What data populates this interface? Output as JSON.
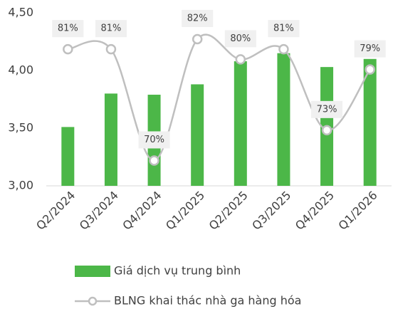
{
  "chart_data": {
    "type": "bar-line",
    "categories": [
      "Q2/2024",
      "Q3/2024",
      "Q4/2024",
      "Q1/2025",
      "Q2/2025",
      "Q3/2025",
      "Q4/2025",
      "Q1/2026"
    ],
    "series": [
      {
        "name": "Giá dịch vụ trung bình",
        "type": "bar",
        "color": "#4cb748",
        "values": [
          3.51,
          3.8,
          3.79,
          3.88,
          4.08,
          4.15,
          4.03,
          4.1
        ]
      },
      {
        "name": "BLNG khai thác nhà ga hàng hóa",
        "type": "line",
        "axis": "y2",
        "color": "#bfbfbf",
        "values": [
          81,
          81,
          70,
          82,
          80,
          81,
          73,
          79
        ],
        "value_labels": [
          "81%",
          "81%",
          "70%",
          "82%",
          "80%",
          "81%",
          "73%",
          "79%"
        ]
      }
    ],
    "ylim": [
      3,
      4.5
    ],
    "yticks": [
      {
        "value": 3,
        "label": "3,00"
      },
      {
        "value": 3.5,
        "label": "3,50"
      },
      {
        "value": 4,
        "label": "4,00"
      },
      {
        "value": 4.5,
        "label": "4,50"
      }
    ],
    "y2lim": [
      67.5,
      84.6
    ],
    "grid": false,
    "legend": "bottom"
  }
}
